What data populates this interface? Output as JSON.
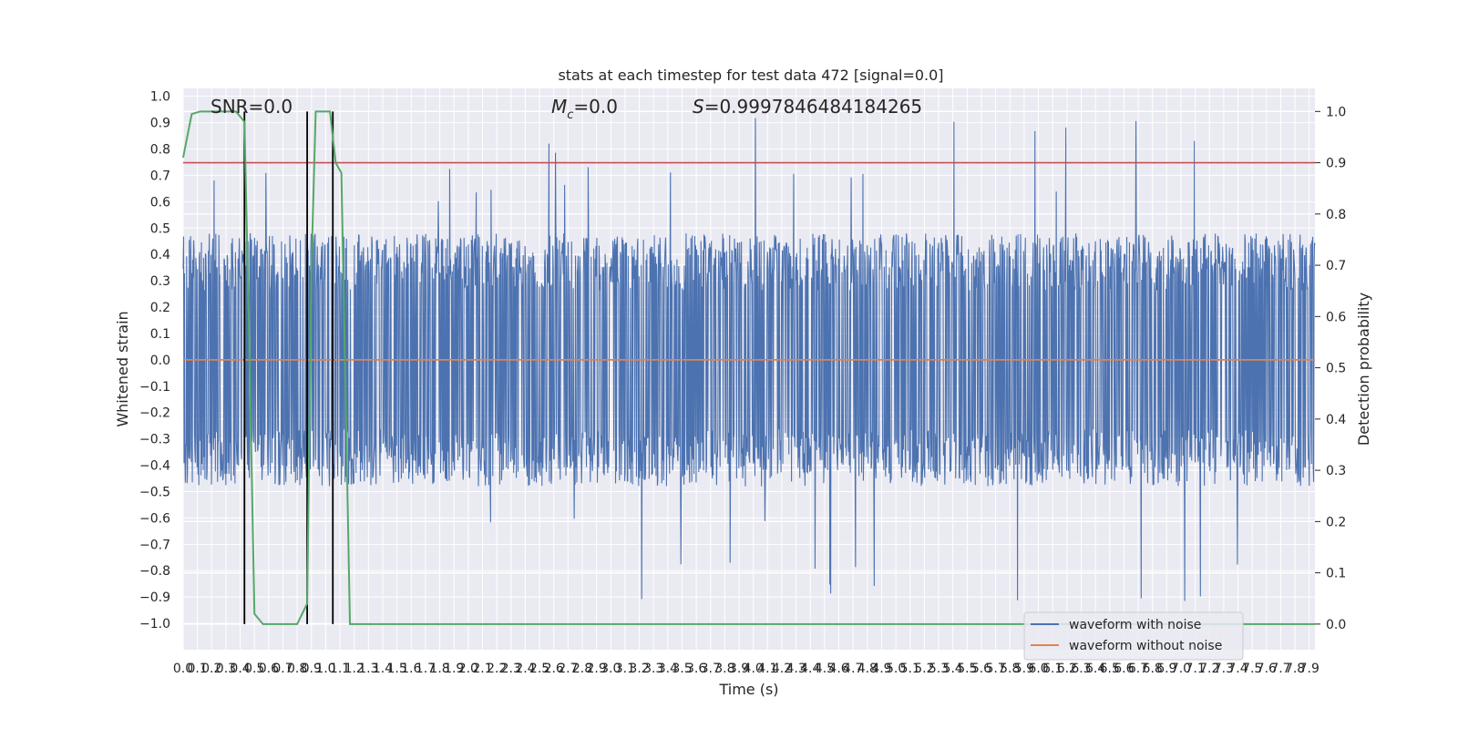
{
  "chart_data": {
    "type": "line",
    "title": "stats at each timestep for test data 472 [signal=0.0]",
    "xlabel": "Time (s)",
    "ylabel_left": "Whitened strain",
    "ylabel_right": "Detection probability",
    "xlim": [
      0.0,
      7.94
    ],
    "ylim_left": [
      -1.1,
      1.03
    ],
    "ylim_right": [
      -0.05,
      1.045
    ],
    "x_ticks": [
      "0.0",
      "0.1",
      "0.2",
      "0.3",
      "0.4",
      "0.5",
      "0.6",
      "0.7",
      "0.8",
      "0.9",
      "1.0",
      "1.1",
      "1.2",
      "1.3",
      "1.4",
      "1.5",
      "1.6",
      "1.7",
      "1.8",
      "1.9",
      "2.0",
      "2.1",
      "2.2",
      "2.3",
      "2.4",
      "2.5",
      "2.6",
      "2.7",
      "2.8",
      "2.9",
      "3.0",
      "3.1",
      "3.2",
      "3.3",
      "3.4",
      "3.5",
      "3.6",
      "3.7",
      "3.8",
      "3.9",
      "4.0",
      "4.1",
      "4.2",
      "4.3",
      "4.4",
      "4.5",
      "4.6",
      "4.7",
      "4.8",
      "4.9",
      "5.0",
      "5.1",
      "5.2",
      "5.3",
      "5.4",
      "5.5",
      "5.6",
      "5.7",
      "5.8",
      "5.9",
      "6.0",
      "6.1",
      "6.2",
      "6.3",
      "6.4",
      "6.5",
      "6.6",
      "6.7",
      "6.8",
      "6.9",
      "7.0",
      "7.1",
      "7.2",
      "7.3",
      "7.4",
      "7.5",
      "7.6",
      "7.7",
      "7.8",
      "7.9"
    ],
    "y_ticks_left": [
      "1.0",
      "0.9",
      "0.8",
      "0.7",
      "0.6",
      "0.5",
      "0.4",
      "0.3",
      "0.2",
      "0.1",
      "0.0",
      "-0.1",
      "-0.2",
      "-0.3",
      "-0.4",
      "-0.5",
      "-0.6",
      "-0.7",
      "-0.8",
      "-0.9",
      "-1.0"
    ],
    "y_ticks_right": [
      "1.0",
      "0.9",
      "0.8",
      "0.7",
      "0.6",
      "0.5",
      "0.4",
      "0.3",
      "0.2",
      "0.1",
      "0.0"
    ],
    "annotations": {
      "snr": "SNR=0.0",
      "mc_symbol": "M",
      "mc_sub": "c",
      "mc_value": "=0.0",
      "s_symbol": "S",
      "s_value": "=0.9997846484184265"
    },
    "legend": {
      "placement": "lower-right",
      "entries": [
        "waveform with noise",
        "waveform without noise"
      ]
    },
    "threshold_right": 0.9,
    "vertical_lines_x": [
      0.43,
      0.87,
      1.05
    ],
    "series": [
      {
        "name": "waveform with noise",
        "color": "#4c72b0",
        "noise_envelope": {
          "typical": 0.48,
          "max": 0.92,
          "min": -1.0
        }
      },
      {
        "name": "waveform without noise",
        "color": "#dd8452",
        "x": [
          0.0,
          7.94
        ],
        "y": [
          0.0,
          0.0
        ]
      },
      {
        "color": "#55a868",
        "axis": "right",
        "x": [
          0.0,
          0.06,
          0.12,
          0.2,
          0.3,
          0.37,
          0.43,
          0.46,
          0.5,
          0.56,
          0.66,
          0.8,
          0.87,
          0.9,
          0.93,
          0.97,
          1.03,
          1.07,
          1.11,
          1.17,
          7.94
        ],
        "y": [
          0.91,
          0.995,
          1.0,
          1.0,
          1.0,
          1.0,
          0.98,
          0.6,
          0.02,
          0.0,
          0.0,
          0.0,
          0.04,
          0.7,
          1.0,
          1.0,
          1.0,
          0.9,
          0.88,
          0.0,
          0.0
        ]
      }
    ],
    "threshold_color": "#c44e52"
  }
}
